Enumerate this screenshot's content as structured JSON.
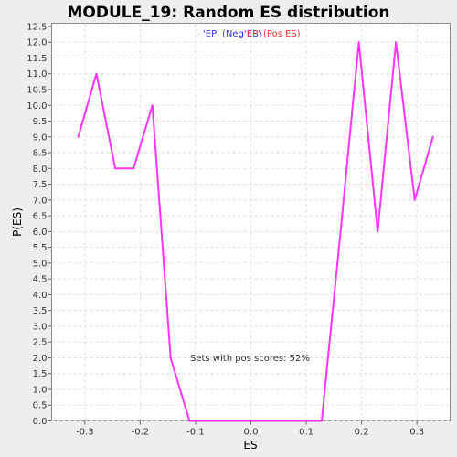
{
  "chart_data": {
    "type": "line",
    "title": "MODULE_19: Random ES distribution",
    "xlabel": "ES",
    "ylabel": "P(ES)",
    "xlim": [
      -0.36,
      0.36
    ],
    "ylim": [
      0.0,
      12.6
    ],
    "x_ticks": [
      "-0.3",
      "-0.2",
      "-0.1",
      "0.0",
      "0.1",
      "0.2",
      "0.3"
    ],
    "x_tick_values": [
      -0.3,
      -0.2,
      -0.1,
      0.0,
      0.1,
      0.2,
      0.3
    ],
    "y_ticks": [
      "0.0",
      "0.5",
      "1.0",
      "1.5",
      "2.0",
      "2.5",
      "3.0",
      "3.5",
      "4.0",
      "4.5",
      "5.0",
      "5.5",
      "6.0",
      "6.5",
      "7.0",
      "7.5",
      "8.0",
      "8.5",
      "9.0",
      "9.5",
      "10.0",
      "10.5",
      "11.0",
      "11.5",
      "12.0",
      "12.5"
    ],
    "y_tick_values": [
      0.0,
      0.5,
      1.0,
      1.5,
      2.0,
      2.5,
      3.0,
      3.5,
      4.0,
      4.5,
      5.0,
      5.5,
      6.0,
      6.5,
      7.0,
      7.5,
      8.0,
      8.5,
      9.0,
      9.5,
      10.0,
      10.5,
      11.0,
      11.5,
      12.0,
      12.5
    ],
    "grid": true,
    "legend_position": "top-center",
    "legend": [
      {
        "label": "'EP' (Neg ES)",
        "color": "#3333ff"
      },
      {
        "label": "'EP' (Pos ES)",
        "color": "#ff3333"
      }
    ],
    "annotation": "Sets with pos scores: 52%",
    "series": [
      {
        "color": "#ff33ff",
        "x": [
          -0.312,
          -0.279,
          -0.245,
          -0.212,
          -0.178,
          -0.145,
          -0.111,
          0.128,
          0.162,
          0.195,
          0.229,
          0.262,
          0.296,
          0.329
        ],
        "y": [
          9.0,
          11.0,
          8.0,
          8.0,
          10.0,
          2.0,
          0.0,
          0.0,
          6.0,
          12.0,
          6.0,
          12.0,
          7.0,
          9.0
        ]
      }
    ]
  }
}
